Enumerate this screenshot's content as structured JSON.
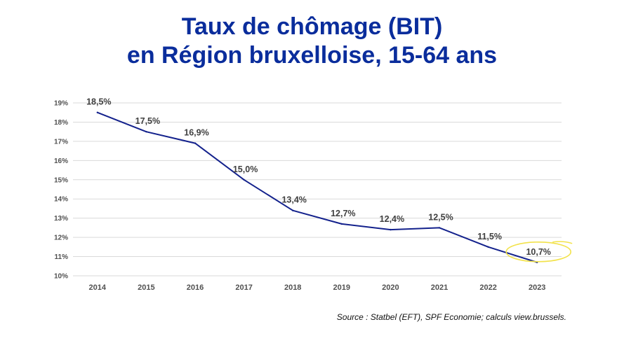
{
  "title_line1": "Taux de chômage (BIT)",
  "title_line2": "en Région bruxelloise, 15-64 ans",
  "source": "Source : Statbel (EFT), SPF Economie; calculs view.brussels.",
  "colors": {
    "title": "#0a2d9c",
    "line": "#13218c",
    "grid": "#d9d9d9",
    "highlight": "#f2e24a"
  },
  "chart_data": {
    "type": "line",
    "title": "Taux de chômage (BIT) en Région bruxelloise, 15-64 ans",
    "xlabel": "",
    "ylabel": "",
    "x": [
      "2014",
      "2015",
      "2016",
      "2017",
      "2018",
      "2019",
      "2020",
      "2021",
      "2022",
      "2023"
    ],
    "values": [
      18.5,
      17.5,
      16.9,
      15.0,
      13.4,
      12.7,
      12.4,
      12.5,
      11.5,
      10.7
    ],
    "data_labels": [
      "18,5%",
      "17,5%",
      "16,9%",
      "15,0%",
      "13,4%",
      "12,7%",
      "12,4%",
      "12,5%",
      "11,5%",
      "10,7%"
    ],
    "yticks": [
      10,
      11,
      12,
      13,
      14,
      15,
      16,
      17,
      18,
      19
    ],
    "ytick_labels": [
      "10%",
      "11%",
      "12%",
      "13%",
      "14%",
      "15%",
      "16%",
      "17%",
      "18%",
      "19%"
    ],
    "ylim": [
      10,
      19
    ],
    "grid": true,
    "legend": "none",
    "highlight": "2023"
  }
}
